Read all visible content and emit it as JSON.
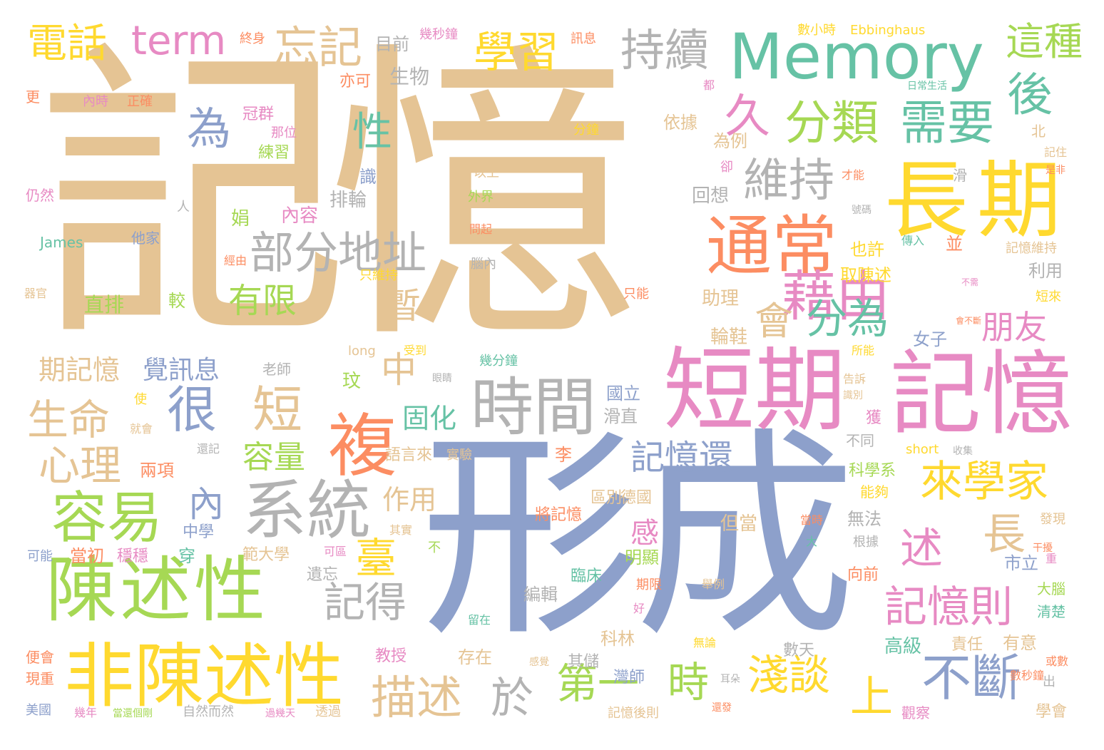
{
  "palette": {
    "tan": "#e5c494",
    "blue": "#8da0cb",
    "pink": "#e78ac3",
    "green": "#66c2a5",
    "lime": "#a6d854",
    "yellow": "#ffd92f",
    "orange": "#fc8d62",
    "gray": "#b3b3b3"
  },
  "words": [
    {
      "text": "記憶",
      "color": "tan"
    },
    {
      "text": "形成",
      "color": "blue"
    },
    {
      "text": "短期",
      "color": "pink"
    },
    {
      "text": "記憶",
      "color": "pink"
    },
    {
      "text": "Memory",
      "color": "green"
    },
    {
      "text": "長期",
      "color": "yellow"
    },
    {
      "text": "陳述性",
      "color": "lime"
    },
    {
      "text": "非陳述性",
      "color": "yellow"
    },
    {
      "text": "系統",
      "color": "gray"
    },
    {
      "text": "時間",
      "color": "gray"
    },
    {
      "text": "複",
      "color": "orange"
    },
    {
      "text": "通常",
      "color": "orange"
    },
    {
      "text": "藉由",
      "color": "pink"
    },
    {
      "text": "分類",
      "color": "lime"
    },
    {
      "text": "需要",
      "color": "green"
    },
    {
      "text": "容易",
      "color": "lime"
    },
    {
      "text": "部分地址",
      "color": "gray"
    },
    {
      "text": "維持",
      "color": "gray"
    },
    {
      "text": "學習",
      "color": "yellow"
    },
    {
      "text": "持續",
      "color": "gray"
    },
    {
      "text": "忘記",
      "color": "tan"
    },
    {
      "text": "電話",
      "color": "yellow"
    },
    {
      "text": "term",
      "color": "pink"
    },
    {
      "text": "為",
      "color": "blue"
    },
    {
      "text": "很",
      "color": "blue"
    },
    {
      "text": "短",
      "color": "tan"
    },
    {
      "text": "不斷",
      "color": "blue"
    },
    {
      "text": "描述",
      "color": "tan"
    },
    {
      "text": "淺談",
      "color": "yellow"
    },
    {
      "text": "來學家",
      "color": "yellow"
    },
    {
      "text": "記憶則",
      "color": "pink"
    },
    {
      "text": "記得",
      "color": "gray"
    },
    {
      "text": "記憶還",
      "color": "blue"
    },
    {
      "text": "生命",
      "color": "tan"
    },
    {
      "text": "心理",
      "color": "tan"
    },
    {
      "text": "會",
      "color": "tan"
    },
    {
      "text": "分為",
      "color": "green"
    },
    {
      "text": "後",
      "color": "green"
    },
    {
      "text": "這種",
      "color": "lime"
    },
    {
      "text": "久",
      "color": "pink"
    },
    {
      "text": "第一",
      "color": "lime"
    },
    {
      "text": "時",
      "color": "lime"
    },
    {
      "text": "於",
      "color": "gray"
    },
    {
      "text": "上",
      "color": "yellow"
    },
    {
      "text": "述",
      "color": "pink"
    },
    {
      "text": "長",
      "color": "tan"
    },
    {
      "text": "朋友",
      "color": "pink"
    },
    {
      "text": "暫",
      "color": "tan"
    },
    {
      "text": "中",
      "color": "tan"
    },
    {
      "text": "性",
      "color": "green"
    },
    {
      "text": "有限",
      "color": "lime"
    },
    {
      "text": "臺",
      "color": "yellow"
    },
    {
      "text": "內",
      "color": "blue"
    },
    {
      "text": "容量",
      "color": "lime"
    },
    {
      "text": "固化",
      "color": "green"
    },
    {
      "text": "作用",
      "color": "tan"
    },
    {
      "text": "期記憶",
      "color": "tan"
    },
    {
      "text": "覺訊息",
      "color": "blue"
    },
    {
      "text": "感",
      "color": "pink"
    },
    {
      "text": "目前",
      "color": "gray"
    },
    {
      "text": "幾秒鐘",
      "color": "pink"
    },
    {
      "text": "終身",
      "color": "orange"
    },
    {
      "text": "訊息",
      "color": "orange"
    },
    {
      "text": "數小時",
      "color": "yellow"
    },
    {
      "text": "Ebbinghaus",
      "color": "yellow"
    },
    {
      "text": "生物",
      "color": "gray"
    },
    {
      "text": "亦可",
      "color": "orange"
    },
    {
      "text": "冠群",
      "color": "pink"
    },
    {
      "text": "那位",
      "color": "pink"
    },
    {
      "text": "練習",
      "color": "lime"
    },
    {
      "text": "內時",
      "color": "pink"
    },
    {
      "text": "正確",
      "color": "orange"
    },
    {
      "text": "更",
      "color": "orange"
    },
    {
      "text": "仍然",
      "color": "pink"
    },
    {
      "text": "人",
      "color": "gray"
    },
    {
      "text": "James",
      "color": "green"
    },
    {
      "text": "他家",
      "color": "blue"
    },
    {
      "text": "識",
      "color": "blue"
    },
    {
      "text": "排輪",
      "color": "gray"
    },
    {
      "text": "娟",
      "color": "lime"
    },
    {
      "text": "內容",
      "color": "pink"
    },
    {
      "text": "直排",
      "color": "lime"
    },
    {
      "text": "較",
      "color": "lime"
    },
    {
      "text": "器官",
      "color": "tan"
    },
    {
      "text": "經由",
      "color": "orange"
    },
    {
      "text": "腦內",
      "color": "gray"
    },
    {
      "text": "只維持",
      "color": "yellow"
    },
    {
      "text": "只能",
      "color": "orange"
    },
    {
      "text": "為例",
      "color": "tan"
    },
    {
      "text": "依據",
      "color": "tan"
    },
    {
      "text": "分鐘",
      "color": "yellow"
    },
    {
      "text": "回想",
      "color": "gray"
    },
    {
      "text": "也許",
      "color": "yellow"
    },
    {
      "text": "取陳述",
      "color": "yellow"
    },
    {
      "text": "利用",
      "color": "gray"
    },
    {
      "text": "助理",
      "color": "tan"
    },
    {
      "text": "輪鞋",
      "color": "tan"
    },
    {
      "text": "女子",
      "color": "blue"
    },
    {
      "text": "日常生活",
      "color": "green"
    },
    {
      "text": "都",
      "color": "pink"
    },
    {
      "text": "北",
      "color": "tan"
    },
    {
      "text": "記住",
      "color": "tan"
    },
    {
      "text": "是非",
      "color": "orange"
    },
    {
      "text": "才能",
      "color": "orange"
    },
    {
      "text": "滑",
      "color": "gray"
    },
    {
      "text": "號碼",
      "color": "gray"
    },
    {
      "text": "傳入",
      "color": "green"
    },
    {
      "text": "並",
      "color": "orange"
    },
    {
      "text": "記憶維持",
      "color": "tan"
    },
    {
      "text": "短來",
      "color": "yellow"
    },
    {
      "text": "不需",
      "color": "pink"
    },
    {
      "text": "會不斷",
      "color": "orange"
    },
    {
      "text": "所能",
      "color": "yellow"
    },
    {
      "text": "外界",
      "color": "lime"
    },
    {
      "text": "以上",
      "color": "tan"
    },
    {
      "text": "卻",
      "color": "pink"
    },
    {
      "text": "問起",
      "color": "orange"
    },
    {
      "text": "long",
      "color": "tan"
    },
    {
      "text": "受到",
      "color": "yellow"
    },
    {
      "text": "幾分鐘",
      "color": "green"
    },
    {
      "text": "老師",
      "color": "gray"
    },
    {
      "text": "眼睛",
      "color": "gray"
    },
    {
      "text": "玟",
      "color": "lime"
    },
    {
      "text": "國立",
      "color": "blue"
    },
    {
      "text": "滑直",
      "color": "gray"
    },
    {
      "text": "告訴",
      "color": "tan"
    },
    {
      "text": "識別",
      "color": "tan"
    },
    {
      "text": "獲",
      "color": "pink"
    },
    {
      "text": "short",
      "color": "yellow"
    },
    {
      "text": "收集",
      "color": "gray"
    },
    {
      "text": "不同",
      "color": "gray"
    },
    {
      "text": "語言來",
      "color": "tan"
    },
    {
      "text": "實驗",
      "color": "tan"
    },
    {
      "text": "兩項",
      "color": "orange"
    },
    {
      "text": "使",
      "color": "yellow"
    },
    {
      "text": "就會",
      "color": "tan"
    },
    {
      "text": "還記",
      "color": "gray"
    },
    {
      "text": "李",
      "color": "orange"
    },
    {
      "text": "科學系",
      "color": "lime"
    },
    {
      "text": "能夠",
      "color": "yellow"
    },
    {
      "text": "區別",
      "color": "tan"
    },
    {
      "text": "德國",
      "color": "tan"
    },
    {
      "text": "中學",
      "color": "blue"
    },
    {
      "text": "當初",
      "color": "orange"
    },
    {
      "text": "穿",
      "color": "green"
    },
    {
      "text": "穩穩",
      "color": "pink"
    },
    {
      "text": "範大學",
      "color": "tan"
    },
    {
      "text": "將記憶",
      "color": "orange"
    },
    {
      "text": "其實",
      "color": "tan"
    },
    {
      "text": "但當",
      "color": "tan"
    },
    {
      "text": "無法",
      "color": "gray"
    },
    {
      "text": "當時",
      "color": "orange"
    },
    {
      "text": "發現",
      "color": "tan"
    },
    {
      "text": "根據",
      "color": "gray"
    },
    {
      "text": "干擾",
      "color": "orange"
    },
    {
      "text": "重",
      "color": "pink"
    },
    {
      "text": "可能",
      "color": "blue"
    },
    {
      "text": "可區",
      "color": "pink"
    },
    {
      "text": "遺忘",
      "color": "gray"
    },
    {
      "text": "明顯",
      "color": "lime"
    },
    {
      "text": "大",
      "color": "green"
    },
    {
      "text": "不",
      "color": "lime"
    },
    {
      "text": "臨床",
      "color": "green"
    },
    {
      "text": "市立",
      "color": "blue"
    },
    {
      "text": "向前",
      "color": "orange"
    },
    {
      "text": "編輯",
      "color": "gray"
    },
    {
      "text": "期限",
      "color": "orange"
    },
    {
      "text": "舉例",
      "color": "tan"
    },
    {
      "text": "大腦",
      "color": "lime"
    },
    {
      "text": "清楚",
      "color": "green"
    },
    {
      "text": "好",
      "color": "pink"
    },
    {
      "text": "留在",
      "color": "green"
    },
    {
      "text": "科林",
      "color": "tan"
    },
    {
      "text": "教授",
      "color": "pink"
    },
    {
      "text": "存在",
      "color": "tan"
    },
    {
      "text": "無論",
      "color": "yellow"
    },
    {
      "text": "高級",
      "color": "green"
    },
    {
      "text": "責任",
      "color": "tan"
    },
    {
      "text": "有意",
      "color": "tan"
    },
    {
      "text": "數天",
      "color": "gray"
    },
    {
      "text": "便會",
      "color": "orange"
    },
    {
      "text": "現重",
      "color": "orange"
    },
    {
      "text": "感覺",
      "color": "tan"
    },
    {
      "text": "其儲",
      "color": "gray"
    },
    {
      "text": "灣師",
      "color": "blue"
    },
    {
      "text": "耳朵",
      "color": "gray"
    },
    {
      "text": "數秒鐘",
      "color": "orange"
    },
    {
      "text": "或數",
      "color": "orange"
    },
    {
      "text": "出",
      "color": "gray"
    },
    {
      "text": "美國",
      "color": "blue"
    },
    {
      "text": "幾年",
      "color": "pink"
    },
    {
      "text": "當還個剛",
      "color": "lime"
    },
    {
      "text": "自然而然",
      "color": "gray"
    },
    {
      "text": "過幾天",
      "color": "pink"
    },
    {
      "text": "透過",
      "color": "tan"
    },
    {
      "text": "記憶後則",
      "color": "tan"
    },
    {
      "text": "還發",
      "color": "orange"
    },
    {
      "text": "觀察",
      "color": "pink"
    },
    {
      "text": "學會",
      "color": "tan"
    }
  ]
}
